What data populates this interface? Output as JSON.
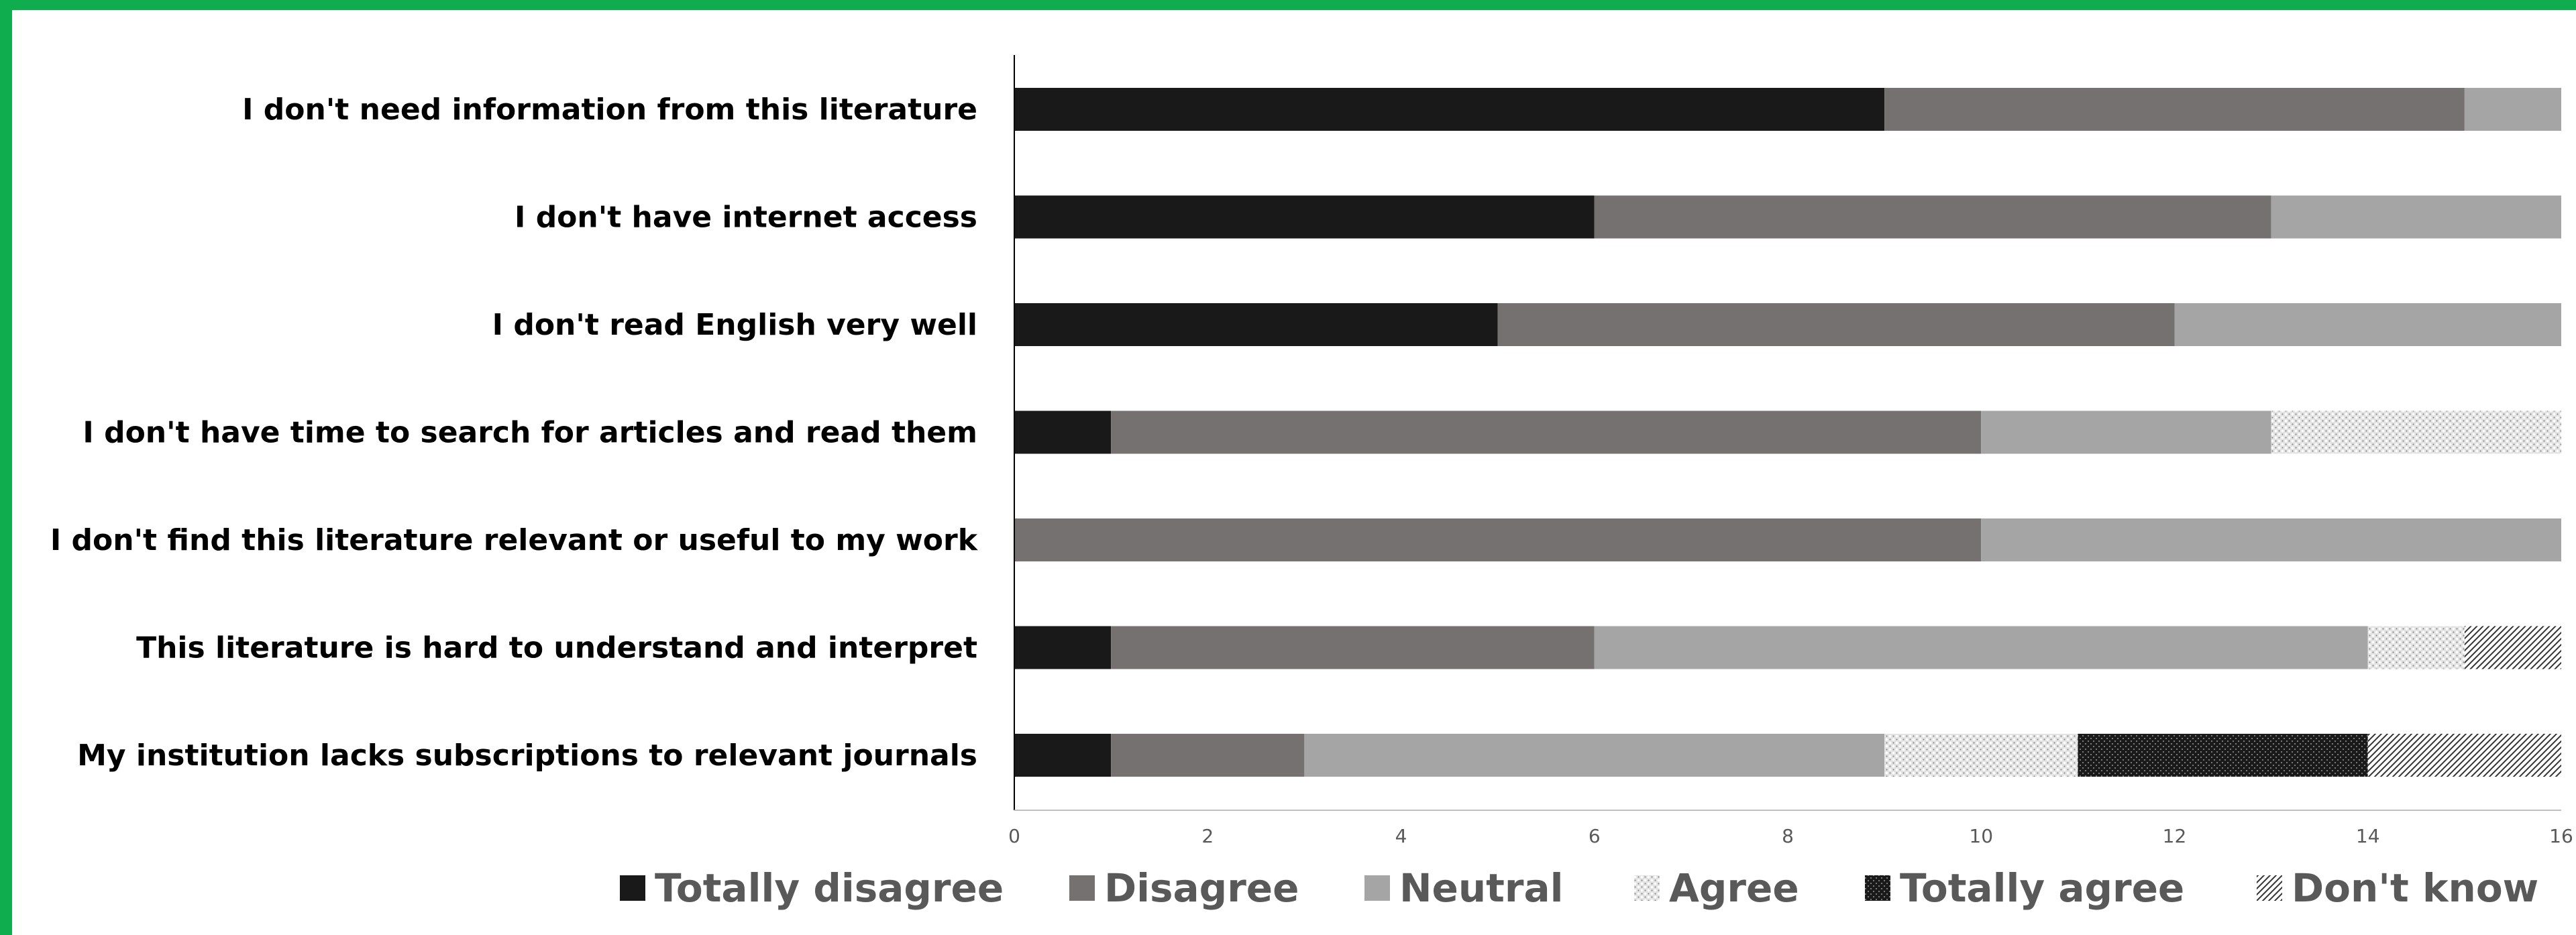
{
  "chart_data": {
    "type": "bar",
    "orientation": "horizontal",
    "stacked": true,
    "categories": [
      "I don't need information from this literature",
      "I don't have internet access",
      "I don't read English very well",
      "I don't have time to search for articles and read them",
      "I don't find this literature relevant or useful to my work",
      "This literature is hard to understand and interpret",
      "My institution lacks subscriptions to relevant journals"
    ],
    "series": [
      {
        "name": "Totally disagree",
        "values": [
          9,
          6,
          5,
          1,
          0,
          1,
          1
        ]
      },
      {
        "name": "Disagree",
        "values": [
          6,
          7,
          7,
          9,
          10,
          5,
          2
        ]
      },
      {
        "name": "Neutral",
        "values": [
          1,
          3,
          4,
          3,
          6,
          8,
          6
        ]
      },
      {
        "name": "Agree",
        "values": [
          0,
          0,
          0,
          3,
          0,
          1,
          2
        ]
      },
      {
        "name": "Totally agree",
        "values": [
          0,
          0,
          0,
          0,
          0,
          0,
          3
        ]
      },
      {
        "name": "Don't know",
        "values": [
          0,
          0,
          0,
          0,
          0,
          1,
          2
        ]
      }
    ],
    "xlim": [
      0,
      16
    ],
    "xticks": [
      "0",
      "2",
      "4",
      "6",
      "8",
      "10",
      "12",
      "14",
      "16"
    ],
    "grid": false,
    "legend_position": "bottom",
    "colors": {
      "Totally disagree": "#191919",
      "Disagree": "#767171",
      "Neutral": "#a5a5a5",
      "Agree": "#d9d9d9",
      "Totally agree": "#2a2a2a",
      "Don't know": "#9a9a9a",
      "frame_accent": "#10ad4f"
    }
  }
}
